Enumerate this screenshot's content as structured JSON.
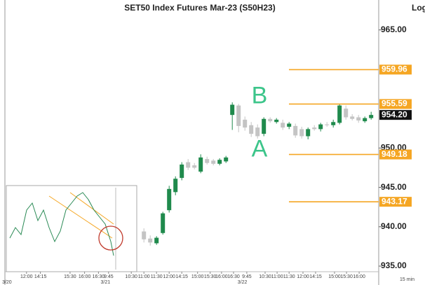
{
  "chart_data": {
    "type": "candlestick",
    "title": "SET50  Index  Futures  Mar-23  (S50H23)",
    "scale_label": "Log",
    "interval_label": "15  min",
    "log_scale": false,
    "up_color": "#1f8a4c",
    "down_color": "#c4c4c4",
    "level_color": "#f5a623",
    "xlim": [
      -22.8,
      37.2
    ],
    "ylim": [
      932.6,
      968.8
    ],
    "yticks": [
      {
        "value": 935,
        "label": "935.00"
      },
      {
        "value": 940,
        "label": "940.00"
      },
      {
        "value": 945,
        "label": "945.00"
      },
      {
        "value": 950,
        "label": "950.00"
      },
      {
        "value": 965,
        "label": "965.00"
      }
    ],
    "xticks": [
      {
        "value": -18.6,
        "label": "12:00"
      },
      {
        "value": -16.4,
        "label": "14:15"
      },
      {
        "value": -11.7,
        "label": "15:30"
      },
      {
        "value": -9.4,
        "label": "16:00"
      },
      {
        "value": -7.2,
        "label": "16:30"
      },
      {
        "value": -5.6,
        "label": "9:45"
      },
      {
        "value": -2,
        "label": "10:30"
      },
      {
        "value": 0,
        "label": "11:00"
      },
      {
        "value": 2,
        "label": "11:30"
      },
      {
        "value": 4,
        "label": "12:00"
      },
      {
        "value": 6,
        "label": "14:15"
      },
      {
        "value": 8.5,
        "label": "15:00"
      },
      {
        "value": 10.5,
        "label": "15:30"
      },
      {
        "value": 12.3,
        "label": "16:00"
      },
      {
        "value": 14.2,
        "label": "16:30"
      },
      {
        "value": 16.3,
        "label": "9:45"
      },
      {
        "value": 19.2,
        "label": "10:30"
      },
      {
        "value": 21.1,
        "label": "11:00"
      },
      {
        "value": 23,
        "label": "11:30"
      },
      {
        "value": 25.2,
        "label": "12:00"
      },
      {
        "value": 27.2,
        "label": "14:15"
      },
      {
        "value": 30.2,
        "label": "15:00"
      },
      {
        "value": 32.1,
        "label": "15:30"
      },
      {
        "value": 34.1,
        "label": "16:00"
      }
    ],
    "date_ticks": [
      {
        "value": -21.7,
        "label": "3/20"
      },
      {
        "value": -6.1,
        "label": "3/21"
      },
      {
        "value": 15.6,
        "label": "3/22"
      }
    ],
    "x": [
      0,
      1,
      2,
      3,
      4,
      5,
      6,
      7,
      8,
      9,
      10,
      11,
      12,
      13,
      14,
      15,
      16,
      17,
      18,
      19,
      20,
      21,
      22,
      23,
      24,
      25,
      26,
      27,
      28,
      29,
      30,
      31,
      32,
      33,
      34,
      35,
      36
    ],
    "open": [
      939.4,
      938.5,
      937.9,
      939.2,
      942.1,
      944.4,
      946.2,
      948.2,
      947.8,
      947.0,
      948.6,
      948.4,
      948.0,
      948.3,
      954.2,
      955.4,
      953.6,
      952.9,
      952.6,
      951.8,
      953.7,
      953.3,
      953.2,
      952.7,
      952.8,
      952.4,
      951.5,
      952.6,
      952.4,
      953.0,
      952.9,
      953.2,
      955.0,
      954.0,
      953.9,
      953.4,
      953.8
    ],
    "high": [
      939.8,
      938.9,
      938.8,
      941.9,
      945.2,
      946.4,
      948.2,
      948.6,
      948.1,
      949.2,
      948.9,
      948.6,
      948.7,
      949.0,
      955.8,
      955.6,
      954.0,
      953.3,
      953.0,
      953.9,
      953.9,
      953.8,
      953.6,
      953.3,
      953.1,
      952.7,
      952.6,
      952.9,
      953.2,
      953.3,
      953.6,
      955.6,
      955.4,
      954.3,
      954.2,
      954.0,
      954.6
    ],
    "low": [
      938.0,
      937.6,
      937.7,
      939.0,
      941.8,
      944.0,
      945.9,
      947.2,
      947.3,
      946.8,
      947.9,
      947.8,
      947.8,
      948.1,
      952.3,
      952.0,
      952.2,
      951.4,
      951.2,
      951.5,
      953.2,
      953.1,
      952.3,
      952.4,
      951.3,
      951.2,
      951.1,
      952.2,
      952.1,
      952.7,
      952.6,
      953.0,
      953.6,
      953.5,
      953.2,
      953.2,
      953.6
    ],
    "close": [
      938.4,
      938.0,
      938.6,
      941.7,
      944.8,
      946.1,
      947.9,
      947.5,
      947.5,
      948.8,
      948.1,
      948.0,
      948.5,
      948.8,
      955.5,
      952.8,
      952.6,
      951.8,
      951.5,
      953.7,
      953.4,
      953.6,
      952.6,
      953.1,
      951.6,
      951.5,
      952.4,
      952.4,
      953.0,
      952.9,
      953.3,
      955.4,
      953.9,
      953.7,
      953.5,
      953.8,
      954.2
    ],
    "levels": [
      959.96,
      955.59,
      949.18,
      943.17
    ],
    "last_price": {
      "value": 954.2,
      "label": "954.20"
    },
    "annotations": [
      "B",
      "A"
    ]
  }
}
